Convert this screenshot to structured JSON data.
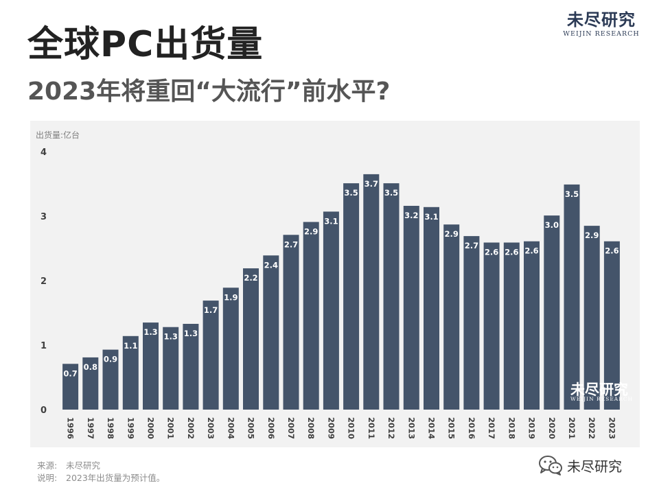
{
  "header": {
    "title": "全球PC出货量",
    "subtitle": "2023年将重回“大流行”前水平?"
  },
  "logo": {
    "name_cn": "未尽研究",
    "name_en": "WEIJIN RESEARCH"
  },
  "footer": {
    "source_key": "来源:",
    "source_value": "未尽研究",
    "note_key": "说明:",
    "note_value": "2023年出货量为预计值。",
    "wechat_icon": "wechat-icon",
    "wechat_name": "未尽研究"
  },
  "colors": {
    "bar": "#44546a",
    "panel": "#f2f2f2",
    "brand": "#2b3a55"
  },
  "chart_data": {
    "type": "bar",
    "ylabel": "出货量:亿台",
    "ylim": [
      0,
      4
    ],
    "yticks": [
      0,
      1,
      2,
      3,
      4
    ],
    "grid": false,
    "categories": [
      "1996",
      "1997",
      "1998",
      "1999",
      "2000",
      "2001",
      "2002",
      "2003",
      "2004",
      "2005",
      "2006",
      "2007",
      "2008",
      "2009",
      "2010",
      "2011",
      "2012",
      "2013",
      "2014",
      "2015",
      "2016",
      "2017",
      "2018",
      "2019",
      "2020",
      "2021",
      "2022",
      "2023"
    ],
    "values": [
      0.7,
      0.8,
      0.9,
      1.1,
      1.3,
      1.3,
      1.3,
      1.7,
      1.9,
      2.2,
      2.4,
      2.7,
      2.9,
      3.1,
      3.5,
      3.7,
      3.5,
      3.2,
      3.1,
      2.9,
      2.7,
      2.6,
      2.6,
      2.6,
      3.0,
      3.5,
      2.9,
      2.6
    ],
    "plot_values": [
      0.71,
      0.81,
      0.93,
      1.14,
      1.35,
      1.28,
      1.33,
      1.69,
      1.89,
      2.19,
      2.39,
      2.71,
      2.91,
      3.07,
      3.51,
      3.65,
      3.51,
      3.16,
      3.14,
      2.87,
      2.69,
      2.59,
      2.59,
      2.61,
      3.01,
      3.49,
      2.85,
      2.61
    ],
    "data_labels": [
      "0.7",
      "0.8",
      "0.9",
      "1.1",
      "1.3",
      "1.3",
      "1.3",
      "1.7",
      "1.9",
      "2.2",
      "2.4",
      "2.7",
      "2.9",
      "3.1",
      "3.5",
      "3.7",
      "3.5",
      "3.2",
      "3.1",
      "2.9",
      "2.7",
      "2.6",
      "2.6",
      "2.6",
      "3.0",
      "3.5",
      "2.9",
      "2.6"
    ],
    "watermark_cn": "未尽研究",
    "watermark_en": "WEIJIN RESEARCH"
  }
}
